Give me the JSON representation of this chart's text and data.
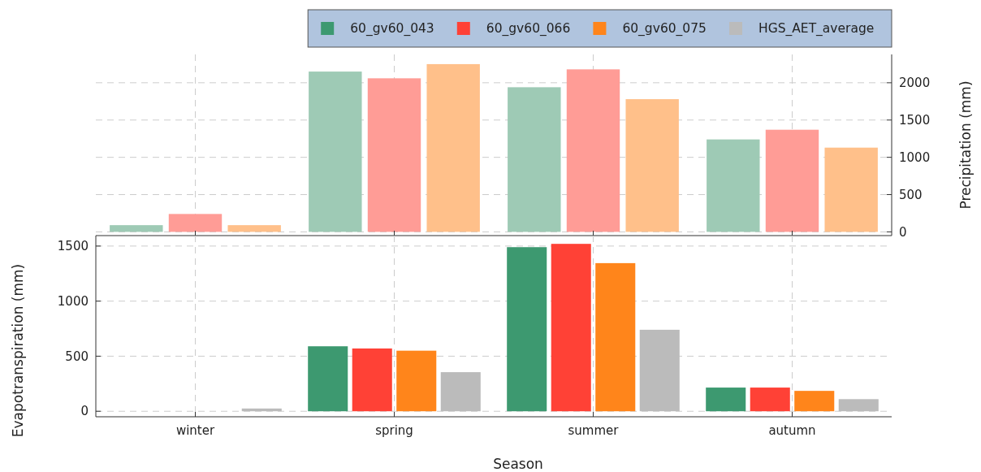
{
  "chart_data": [
    {
      "type": "bar",
      "ylabel": "Precipitation (mm)",
      "categories": [
        null,
        null,
        null,
        null
      ],
      "ylim": [
        -50,
        2380
      ],
      "yticks": [
        0,
        500,
        1000,
        1500,
        2000
      ],
      "grid": true,
      "tick_labels": "y",
      "series": [
        {
          "color": "#9ecab5",
          "values": [
            90,
            2150,
            1940,
            1240
          ]
        },
        {
          "color": "#ff9c96",
          "values": [
            240,
            2060,
            2180,
            1370
          ]
        },
        {
          "color": "#ffc08a",
          "values": [
            90,
            2250,
            1780,
            1130
          ]
        }
      ]
    },
    {
      "type": "bar",
      "ylabel": "Evapotranspiration (mm)",
      "xlabel": "Season",
      "categories": [
        "winter",
        "spring",
        "summer",
        "autumn"
      ],
      "ylim": [
        -50,
        1595
      ],
      "yticks": [
        0,
        500,
        1000,
        1500
      ],
      "grid": true,
      "legend": "top",
      "series": [
        {
          "name": "60_gv60_043",
          "color": "#3d9970",
          "values": [
            0,
            590,
            1490,
            215
          ]
        },
        {
          "name": "60_gv60_066",
          "color": "#ff4136",
          "values": [
            0,
            570,
            1520,
            215
          ]
        },
        {
          "name": "60_gv60_075",
          "color": "#ff851b",
          "values": [
            0,
            550,
            1345,
            185
          ]
        },
        {
          "name": "HGS_AET_average",
          "color": "#bbbbbb",
          "values": [
            25,
            355,
            740,
            110
          ]
        }
      ]
    }
  ]
}
